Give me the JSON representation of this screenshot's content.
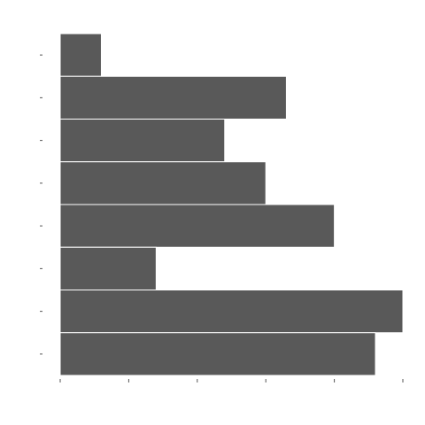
{
  "chart_data": {
    "type": "bar",
    "orientation": "horizontal",
    "title": "",
    "xlabel": "",
    "ylabel": "",
    "categories": [
      "",
      "",
      "",
      "",
      "",
      "",
      "",
      ""
    ],
    "values": [
      0.6,
      3.3,
      2.4,
      3.0,
      4.0,
      1.4,
      5.0,
      4.6
    ],
    "xlim": [
      0,
      5
    ],
    "xticks": [
      0,
      1,
      2,
      3,
      4,
      5
    ],
    "grid": false,
    "bar_color": "#595959",
    "background": "#ffffff"
  }
}
